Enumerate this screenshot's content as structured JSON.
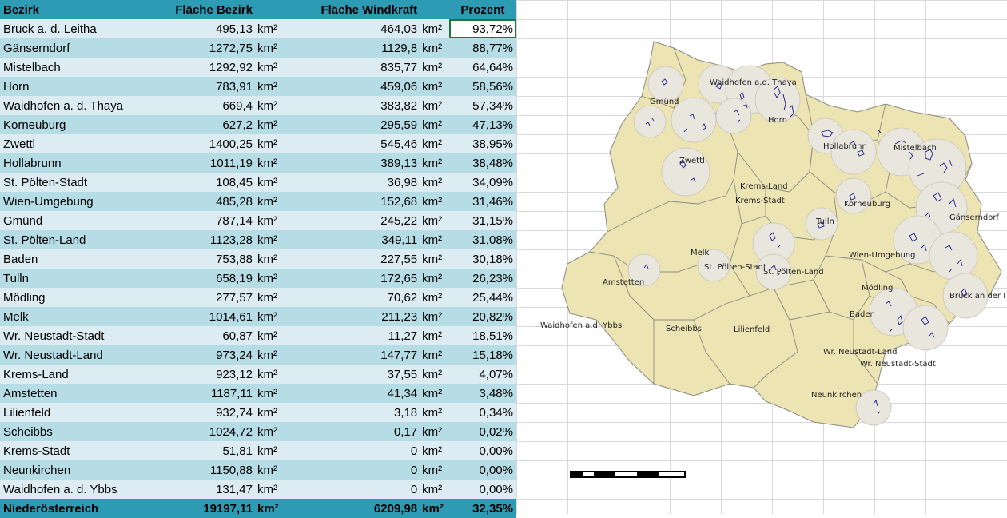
{
  "table": {
    "headers": [
      "Bezirk",
      "Fläche Bezirk",
      "Fläche Windkraft",
      "Prozent"
    ],
    "unit": "km²",
    "rows": [
      {
        "name": "Bruck a. d. Leitha",
        "area": "495,13",
        "wind": "464,03",
        "pct": "93,72%"
      },
      {
        "name": "Gänserndorf",
        "area": "1272,75",
        "wind": "1129,8",
        "pct": "88,77%"
      },
      {
        "name": "Mistelbach",
        "area": "1292,92",
        "wind": "835,77",
        "pct": "64,64%"
      },
      {
        "name": "Horn",
        "area": "783,91",
        "wind": "459,06",
        "pct": "58,56%"
      },
      {
        "name": "Waidhofen a. d. Thaya",
        "area": "669,4",
        "wind": "383,82",
        "pct": "57,34%"
      },
      {
        "name": "Korneuburg",
        "area": "627,2",
        "wind": "295,59",
        "pct": "47,13%"
      },
      {
        "name": "Zwettl",
        "area": "1400,25",
        "wind": "545,46",
        "pct": "38,95%"
      },
      {
        "name": "Hollabrunn",
        "area": "1011,19",
        "wind": "389,13",
        "pct": "38,48%"
      },
      {
        "name": "St. Pölten-Stadt",
        "area": "108,45",
        "wind": "36,98",
        "pct": "34,09%"
      },
      {
        "name": "Wien-Umgebung",
        "area": "485,28",
        "wind": "152,68",
        "pct": "31,46%"
      },
      {
        "name": "Gmünd",
        "area": "787,14",
        "wind": "245,22",
        "pct": "31,15%"
      },
      {
        "name": "St. Pölten-Land",
        "area": "1123,28",
        "wind": "349,11",
        "pct": "31,08%"
      },
      {
        "name": "Baden",
        "area": "753,88",
        "wind": "227,55",
        "pct": "30,18%"
      },
      {
        "name": "Tulln",
        "area": "658,19",
        "wind": "172,65",
        "pct": "26,23%"
      },
      {
        "name": "Mödling",
        "area": "277,57",
        "wind": "70,62",
        "pct": "25,44%"
      },
      {
        "name": "Melk",
        "area": "1014,61",
        "wind": "211,23",
        "pct": "20,82%"
      },
      {
        "name": "Wr. Neustadt-Stadt",
        "area": "60,87",
        "wind": "11,27",
        "pct": "18,51%"
      },
      {
        "name": "Wr. Neustadt-Land",
        "area": "973,24",
        "wind": "147,77",
        "pct": "15,18%"
      },
      {
        "name": "Krems-Land",
        "area": "923,12",
        "wind": "37,55",
        "pct": "4,07%"
      },
      {
        "name": "Amstetten",
        "area": "1187,11",
        "wind": "41,34",
        "pct": "3,48%"
      },
      {
        "name": "Lilienfeld",
        "area": "932,74",
        "wind": "3,18",
        "pct": "0,34%"
      },
      {
        "name": "Scheibbs",
        "area": "1024,72",
        "wind": "0,17",
        "pct": "0,02%"
      },
      {
        "name": "Krems-Stadt",
        "area": "51,81",
        "wind": "0",
        "pct": "0,00%"
      },
      {
        "name": "Neunkirchen",
        "area": "1150,88",
        "wind": "0",
        "pct": "0,00%"
      },
      {
        "name": "Waidhofen a. d. Ybbs",
        "area": "131,47",
        "wind": "0",
        "pct": "0,00%"
      }
    ],
    "total": {
      "name": "Niederösterreich",
      "area": "19197,11",
      "wind": "6209,98",
      "pct": "32,35%"
    }
  },
  "map": {
    "labels": [
      "Waidhofen a.d. Thaya",
      "Gmünd",
      "Horn",
      "Hollabrunn",
      "Mistelbach",
      "Zwettl",
      "Krems-Land",
      "Krems-Stadt",
      "Korneuburg",
      "Gänserndorf",
      "Tulln",
      "Melk",
      "St. Pölten-Stadt",
      "St. Pölten-Land",
      "Wien-Umgebung",
      "Amstetten",
      "Mödling",
      "Bruck an der Le",
      "Baden",
      "Waidhofen a.d. Ybbs",
      "Scheibbs",
      "Lilienfeld",
      "Wr. Neustadt-Land",
      "Wr. Neustadt-Stadt",
      "Neunkirchen"
    ],
    "scale": {
      "ticks": [
        "10",
        "0",
        "10",
        "20",
        "30",
        "40"
      ],
      "unit": "km"
    },
    "colors": {
      "land": "#ede4b4",
      "buffer": "#e9e6de",
      "border": "#8a8a80",
      "zones": "#1a1a8c"
    }
  },
  "colors": {
    "header": "#2e9bb5",
    "row_light": "#dcecf2",
    "row_dark": "#b6dce6",
    "selection": "#217346"
  }
}
